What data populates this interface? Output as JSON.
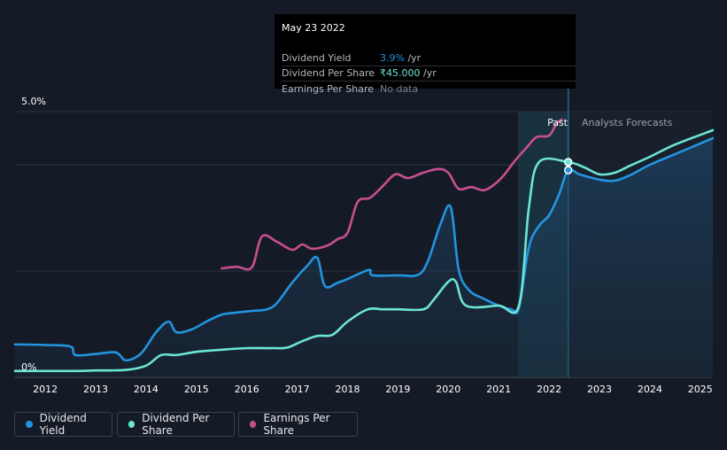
{
  "tooltip": {
    "date": "May 23 2022",
    "rows": [
      {
        "label": "Dividend Yield",
        "value": "3.9%",
        "unit": " /yr",
        "color": "#2394df"
      },
      {
        "label": "Dividend Per Share",
        "value": "₹45.000",
        "unit": " /yr",
        "color": "#6ce5d4"
      },
      {
        "label": "Earnings Per Share",
        "value": "No data",
        "unit": "",
        "color": "#7a7f88"
      }
    ]
  },
  "regions": {
    "past": "Past",
    "forecast": "Analysts Forecasts",
    "divider_x": 2022.38,
    "past_start_x": 2021.38
  },
  "legend": [
    {
      "label": "Dividend Yield",
      "color": "#2394df"
    },
    {
      "label": "Dividend Per Share",
      "color": "#6ce5d4"
    },
    {
      "label": "Earnings Per Share",
      "color": "#c84f8f"
    }
  ],
  "chart_data": {
    "type": "line",
    "xlim": [
      2011.4,
      2025.25
    ],
    "ylim": [
      0,
      5.0
    ],
    "ytick_labels": [
      {
        "value": 5.0,
        "label": "5.0%"
      },
      {
        "value": 0,
        "label": "0%"
      }
    ],
    "gridlines": [
      0,
      2.0,
      4.0,
      5.0
    ],
    "xticks": [
      2012,
      2013,
      2014,
      2015,
      2016,
      2017,
      2018,
      2019,
      2020,
      2021,
      2022,
      2023,
      2024,
      2025
    ],
    "series": [
      {
        "name": "Dividend Yield",
        "color": "#2394df",
        "fill": true,
        "points": [
          [
            2011.4,
            0.62
          ],
          [
            2012.0,
            0.61
          ],
          [
            2012.5,
            0.58
          ],
          [
            2012.6,
            0.42
          ],
          [
            2013.0,
            0.44
          ],
          [
            2013.4,
            0.47
          ],
          [
            2013.6,
            0.32
          ],
          [
            2013.9,
            0.45
          ],
          [
            2014.2,
            0.85
          ],
          [
            2014.45,
            1.05
          ],
          [
            2014.6,
            0.85
          ],
          [
            2014.9,
            0.9
          ],
          [
            2015.2,
            1.05
          ],
          [
            2015.5,
            1.18
          ],
          [
            2015.8,
            1.22
          ],
          [
            2016.1,
            1.25
          ],
          [
            2016.4,
            1.28
          ],
          [
            2016.6,
            1.4
          ],
          [
            2016.9,
            1.78
          ],
          [
            2017.2,
            2.1
          ],
          [
            2017.4,
            2.25
          ],
          [
            2017.55,
            1.72
          ],
          [
            2017.8,
            1.78
          ],
          [
            2018.0,
            1.85
          ],
          [
            2018.3,
            1.98
          ],
          [
            2018.45,
            2.02
          ],
          [
            2018.5,
            1.92
          ],
          [
            2019.0,
            1.92
          ],
          [
            2019.4,
            1.93
          ],
          [
            2019.6,
            2.2
          ],
          [
            2019.85,
            2.9
          ],
          [
            2020.05,
            3.2
          ],
          [
            2020.2,
            2.05
          ],
          [
            2020.4,
            1.65
          ],
          [
            2020.7,
            1.48
          ],
          [
            2021.0,
            1.35
          ],
          [
            2021.25,
            1.28
          ],
          [
            2021.4,
            1.3
          ],
          [
            2021.6,
            2.45
          ],
          [
            2021.8,
            2.85
          ],
          [
            2022.0,
            3.05
          ],
          [
            2022.2,
            3.45
          ],
          [
            2022.38,
            3.9
          ],
          [
            2022.6,
            3.82
          ],
          [
            2023.0,
            3.72
          ],
          [
            2023.3,
            3.7
          ],
          [
            2023.6,
            3.8
          ],
          [
            2024.0,
            4.0
          ],
          [
            2024.5,
            4.2
          ],
          [
            2025.25,
            4.5
          ]
        ]
      },
      {
        "name": "Dividend Per Share",
        "color": "#6ce5d4",
        "fill": false,
        "points": [
          [
            2011.4,
            0.12
          ],
          [
            2012.6,
            0.12
          ],
          [
            2013.0,
            0.13
          ],
          [
            2013.6,
            0.14
          ],
          [
            2014.0,
            0.22
          ],
          [
            2014.3,
            0.42
          ],
          [
            2014.6,
            0.42
          ],
          [
            2015.0,
            0.48
          ],
          [
            2015.5,
            0.52
          ],
          [
            2016.0,
            0.55
          ],
          [
            2016.5,
            0.55
          ],
          [
            2016.8,
            0.56
          ],
          [
            2017.1,
            0.68
          ],
          [
            2017.4,
            0.78
          ],
          [
            2017.7,
            0.8
          ],
          [
            2018.0,
            1.05
          ],
          [
            2018.4,
            1.28
          ],
          [
            2018.7,
            1.28
          ],
          [
            2019.0,
            1.28
          ],
          [
            2019.5,
            1.28
          ],
          [
            2019.7,
            1.45
          ],
          [
            2020.0,
            1.8
          ],
          [
            2020.15,
            1.8
          ],
          [
            2020.35,
            1.35
          ],
          [
            2021.0,
            1.35
          ],
          [
            2021.4,
            1.35
          ],
          [
            2021.6,
            3.2
          ],
          [
            2021.8,
            4.05
          ],
          [
            2022.38,
            4.05
          ],
          [
            2022.7,
            3.95
          ],
          [
            2023.0,
            3.82
          ],
          [
            2023.3,
            3.85
          ],
          [
            2023.6,
            3.98
          ],
          [
            2024.0,
            4.15
          ],
          [
            2024.5,
            4.38
          ],
          [
            2025.25,
            4.65
          ]
        ]
      },
      {
        "name": "Earnings Per Share",
        "color": "#c84f8f",
        "fill": false,
        "points": [
          [
            2015.5,
            2.05
          ],
          [
            2015.8,
            2.08
          ],
          [
            2016.1,
            2.07
          ],
          [
            2016.3,
            2.65
          ],
          [
            2016.6,
            2.55
          ],
          [
            2016.9,
            2.4
          ],
          [
            2017.1,
            2.5
          ],
          [
            2017.3,
            2.42
          ],
          [
            2017.6,
            2.48
          ],
          [
            2017.8,
            2.6
          ],
          [
            2018.0,
            2.72
          ],
          [
            2018.2,
            3.3
          ],
          [
            2018.45,
            3.38
          ],
          [
            2018.7,
            3.6
          ],
          [
            2018.95,
            3.82
          ],
          [
            2019.2,
            3.75
          ],
          [
            2019.5,
            3.85
          ],
          [
            2019.8,
            3.92
          ],
          [
            2020.0,
            3.85
          ],
          [
            2020.2,
            3.55
          ],
          [
            2020.45,
            3.58
          ],
          [
            2020.7,
            3.52
          ],
          [
            2020.9,
            3.62
          ],
          [
            2021.1,
            3.8
          ],
          [
            2021.3,
            4.05
          ],
          [
            2021.55,
            4.32
          ],
          [
            2021.75,
            4.52
          ],
          [
            2022.0,
            4.55
          ],
          [
            2022.15,
            4.78
          ],
          [
            2022.25,
            4.85
          ]
        ]
      }
    ]
  }
}
